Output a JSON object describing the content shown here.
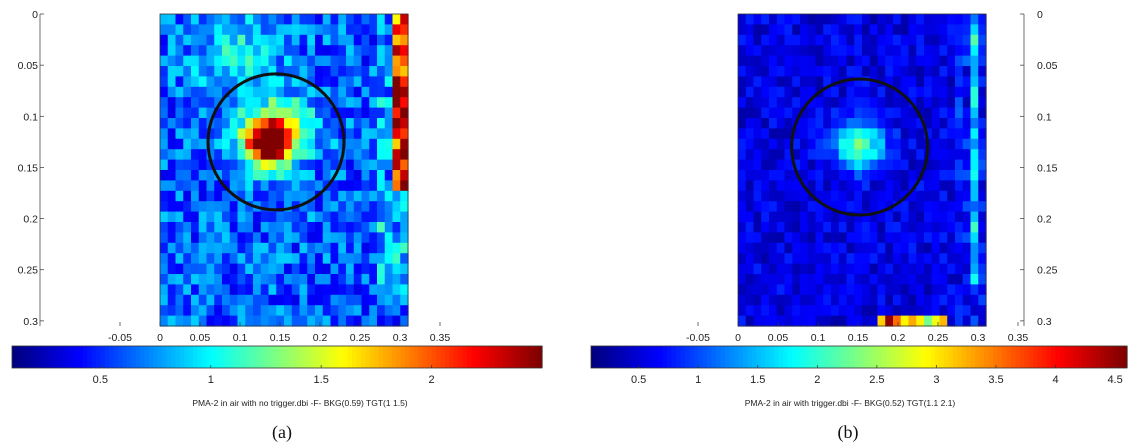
{
  "chart_data": [
    {
      "type": "heatmap",
      "label": "(a)",
      "caption": "PMA-2 in air with no trigger.dbi -F- BKG(0.59) TGT(1    1.5)",
      "x_ticks": [
        "-0.05",
        "0",
        "0.05",
        "0.1",
        "0.15",
        "0.2",
        "0.25",
        "0.3",
        "0.35"
      ],
      "x_tick_values": [
        -0.05,
        0,
        0.05,
        0.1,
        0.15,
        0.2,
        0.25,
        0.3,
        0.35
      ],
      "y_ticks": [
        "0",
        "0.05",
        "0.1",
        "0.15",
        "0.2",
        "0.25",
        "0.3"
      ],
      "y_tick_values": [
        0,
        0.05,
        0.1,
        0.15,
        0.2,
        0.25,
        0.3
      ],
      "xlim": [
        -0.065,
        0.365
      ],
      "ylim": [
        0,
        0.305
      ],
      "data_extent_x": [
        0.0,
        0.31
      ],
      "colorbar": {
        "ticks": [
          "0.5",
          "1",
          "1.5",
          "2"
        ],
        "tick_values": [
          0.5,
          1.0,
          1.5,
          2.0
        ],
        "range": [
          0.1,
          2.5
        ],
        "colormap": "jet"
      },
      "circle": {
        "cx": 0.145,
        "cy": 0.125,
        "r": 0.085,
        "color": "#111111"
      },
      "background_level": 0.62,
      "hotspots": [
        {
          "x": 0.135,
          "y": 0.125,
          "peak": 2.05,
          "sx": 0.022,
          "sy": 0.018
        },
        {
          "x": 0.16,
          "y": 0.11,
          "peak": 0.55,
          "sx": 0.03,
          "sy": 0.02
        },
        {
          "x": 0.1,
          "y": 0.04,
          "peak": 0.35,
          "sx": 0.04,
          "sy": 0.03
        }
      ],
      "edge_stripe": {
        "x": 0.297,
        "y0": 0.0,
        "y1": 0.17,
        "peak": 2.2
      }
    },
    {
      "type": "heatmap",
      "label": "(b)",
      "caption": "PMA-2 in air with trigger.dbi -F- BKG(0.52) TGT(1.1     2.1)",
      "x_ticks": [
        "-0.05",
        "0",
        "0.05",
        "0.1",
        "0.15",
        "0.2",
        "0.25",
        "0.3",
        "0.35"
      ],
      "x_tick_values": [
        -0.05,
        0,
        0.05,
        0.1,
        0.15,
        0.2,
        0.25,
        0.3,
        0.35
      ],
      "y_ticks": [
        "0",
        "0.05",
        "0.1",
        "0.15",
        "0.2",
        "0.25",
        "0.3"
      ],
      "y_tick_values": [
        0,
        0.05,
        0.1,
        0.15,
        0.2,
        0.25,
        0.3
      ],
      "xlim": [
        -0.065,
        0.355
      ],
      "ylim": [
        0,
        0.305
      ],
      "data_extent_x": [
        0.0,
        0.31
      ],
      "colorbar": {
        "ticks": [
          "0.5",
          "1",
          "1.5",
          "2",
          "2.5",
          "3",
          "3.5",
          "4",
          "4.5"
        ],
        "tick_values": [
          0.5,
          1.0,
          1.5,
          2.0,
          2.5,
          3.0,
          3.5,
          4.0,
          4.5
        ],
        "range": [
          0.1,
          4.6
        ],
        "colormap": "jet"
      },
      "circle": {
        "cx": 0.152,
        "cy": 0.13,
        "r": 0.085,
        "color": "#111111"
      },
      "background_level": 0.55,
      "hotspots": [
        {
          "x": 0.152,
          "y": 0.13,
          "peak": 1.7,
          "sx": 0.022,
          "sy": 0.016
        }
      ],
      "edge_stripe": {
        "x": 0.295,
        "y0": 0.0,
        "y1": 0.26,
        "peak": 1.4
      },
      "bottom_hotspot": {
        "x0": 0.175,
        "x1": 0.26,
        "peak": 4.0
      }
    }
  ]
}
